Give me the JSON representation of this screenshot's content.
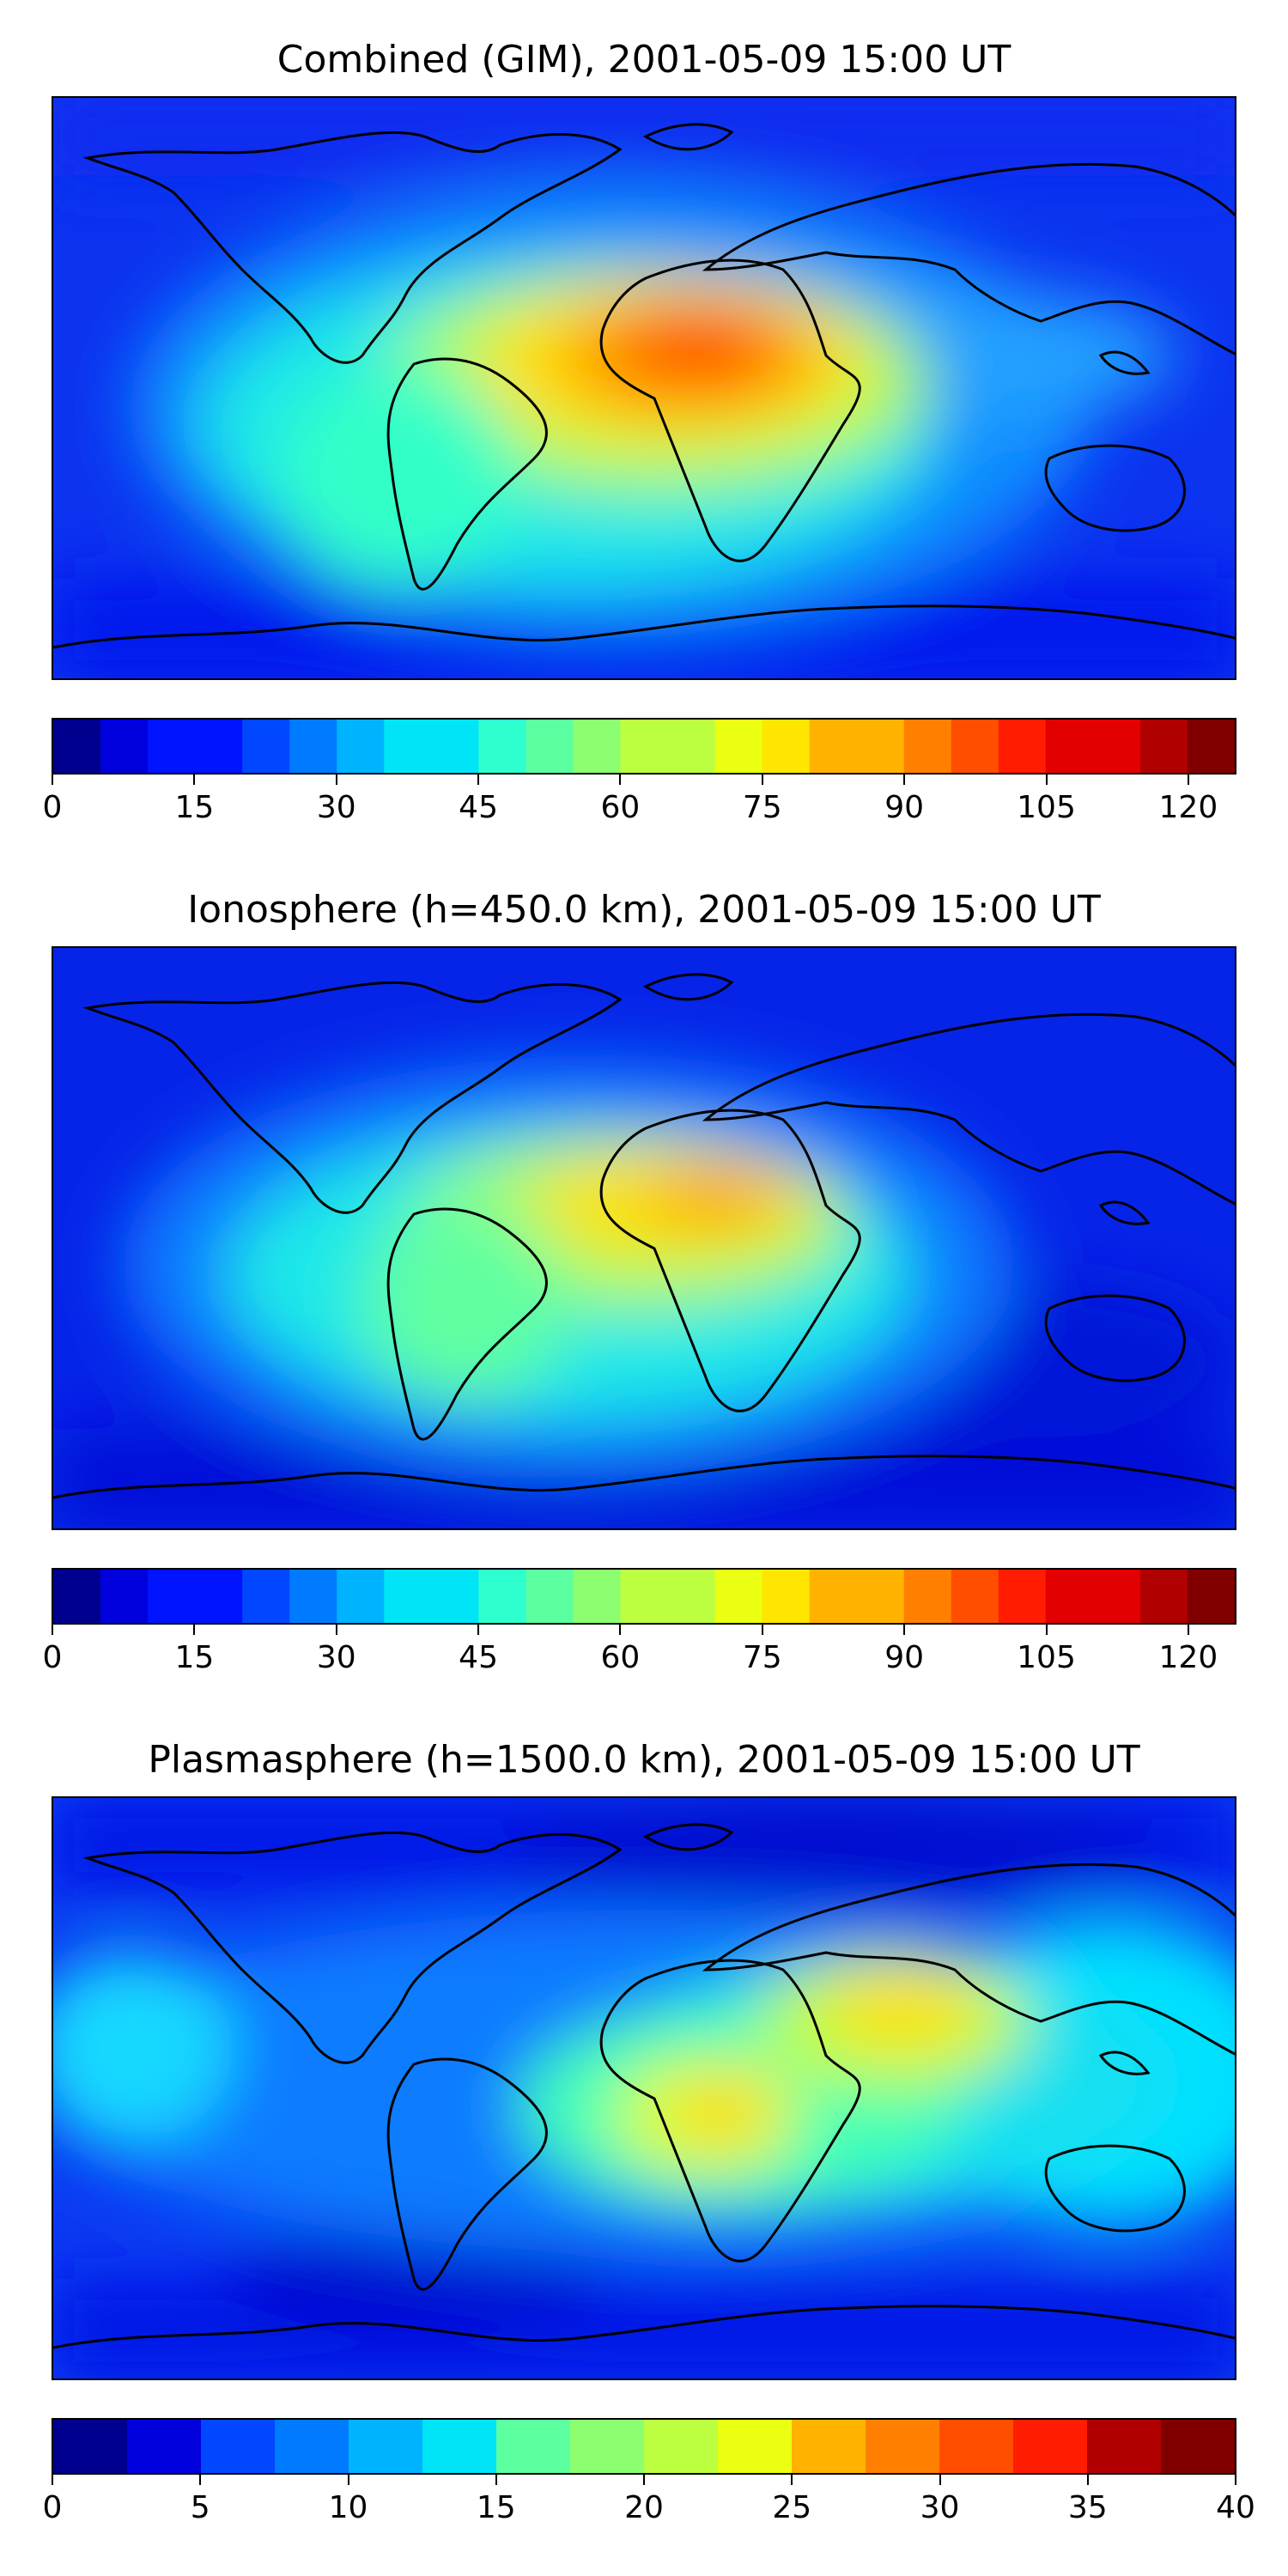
{
  "panels": [
    {
      "title": "Combined (GIM), 2001-05-09 15:00 UT",
      "colorbar": {
        "min": 0,
        "max": 125,
        "step": 5,
        "ticks": [
          "0",
          "15",
          "30",
          "45",
          "60",
          "75",
          "90",
          "105",
          "120"
        ],
        "tick_values": [
          0,
          15,
          30,
          45,
          60,
          75,
          90,
          105,
          120
        ]
      }
    },
    {
      "title": "Ionosphere  (h=450.0 km), 2001-05-09 15:00 UT",
      "colorbar": {
        "min": 0,
        "max": 125,
        "step": 5,
        "ticks": [
          "0",
          "15",
          "30",
          "45",
          "60",
          "75",
          "90",
          "105",
          "120"
        ],
        "tick_values": [
          0,
          15,
          30,
          45,
          60,
          75,
          90,
          105,
          120
        ]
      }
    },
    {
      "title": "Plasmasphere (h=1500.0 km), 2001-05-09 15:00 UT",
      "colorbar": {
        "min": 0,
        "max": 40,
        "step": 2.5,
        "ticks": [
          "0",
          "5",
          "10",
          "15",
          "20",
          "25",
          "30",
          "35",
          "40"
        ],
        "tick_values": [
          0,
          5,
          10,
          15,
          20,
          25,
          30,
          35,
          40
        ]
      }
    }
  ],
  "colormap": [
    "#00008f",
    "#0000dd",
    "#0013ff",
    "#0047ff",
    "#007bff",
    "#00b3ff",
    "#00e4f8",
    "#2dffcf",
    "#5cffa0",
    "#8cff70",
    "#bcff40",
    "#eaff12",
    "#ffe600",
    "#ffb300",
    "#ff8000",
    "#ff4e00",
    "#ff1c00",
    "#e20000",
    "#b00000",
    "#800000"
  ]
}
